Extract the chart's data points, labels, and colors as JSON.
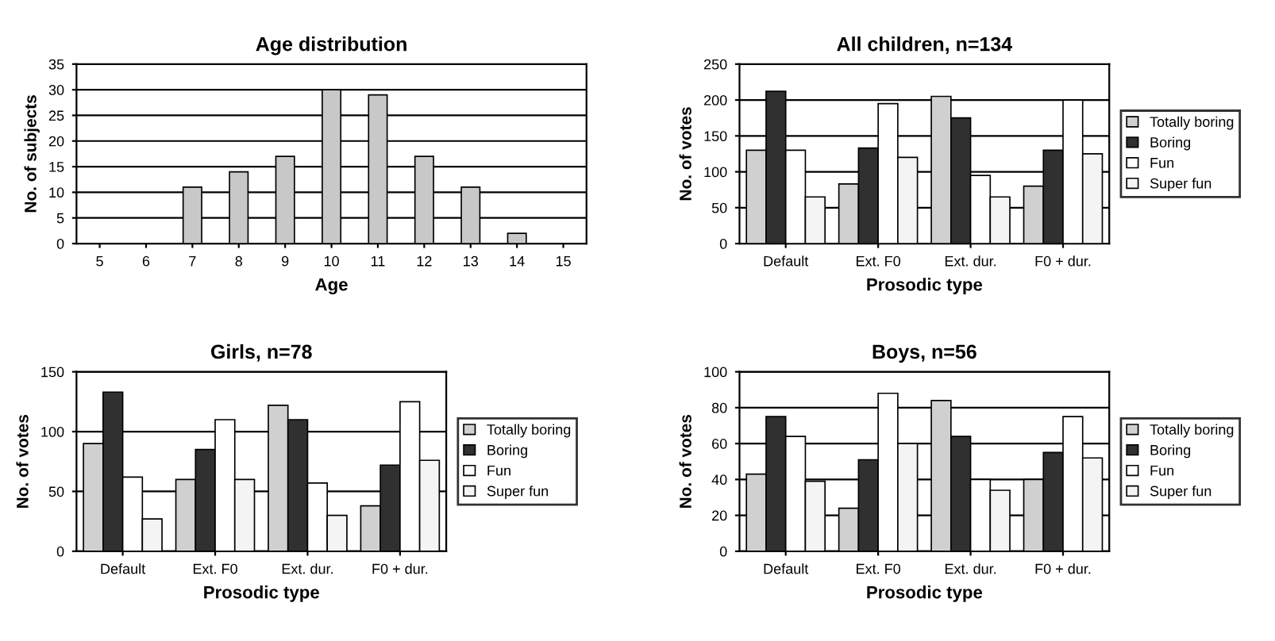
{
  "chart_data": [
    {
      "type": "bar",
      "title": "Age distribution",
      "xlabel": "Age",
      "ylabel": "No. of subjects",
      "categories": [
        "5",
        "6",
        "7",
        "8",
        "9",
        "10",
        "11",
        "12",
        "13",
        "14",
        "15"
      ],
      "series": [
        {
          "color": "#c8c8c8",
          "values": [
            0,
            0,
            11,
            14,
            17,
            30,
            29,
            17,
            11,
            2,
            0
          ]
        }
      ],
      "ylim": [
        0,
        35
      ],
      "yticks": [
        0,
        5,
        10,
        15,
        20,
        25,
        30,
        35
      ],
      "grid": "y",
      "legend": false
    },
    {
      "type": "bar",
      "title": "All children, n=134",
      "xlabel": "Prosodic type",
      "ylabel": "No. of votes",
      "categories": [
        "Default",
        "Ext. F0",
        "Ext. dur.",
        "F0 + dur."
      ],
      "series": [
        {
          "name": "Totally boring",
          "color": "#d0d0d0",
          "values": [
            130,
            83,
            205,
            80
          ]
        },
        {
          "name": "Boring",
          "color": "#303030",
          "values": [
            212,
            133,
            175,
            130
          ]
        },
        {
          "name": "Fun",
          "color": "#ffffff",
          "values": [
            130,
            195,
            95,
            200
          ]
        },
        {
          "name": "Super fun",
          "color": "#f4f4f4",
          "values": [
            65,
            120,
            65,
            125
          ]
        }
      ],
      "ylim": [
        0,
        250
      ],
      "yticks": [
        0,
        50,
        100,
        150,
        200,
        250
      ],
      "grid": "y",
      "legend": "right"
    },
    {
      "type": "bar",
      "title": "Girls, n=78",
      "xlabel": "Prosodic type",
      "ylabel": "No. of votes",
      "categories": [
        "Default",
        "Ext. F0",
        "Ext. dur.",
        "F0 + dur."
      ],
      "series": [
        {
          "name": "Totally boring",
          "color": "#d0d0d0",
          "values": [
            90,
            60,
            122,
            38
          ]
        },
        {
          "name": "Boring",
          "color": "#303030",
          "values": [
            133,
            85,
            110,
            72
          ]
        },
        {
          "name": "Fun",
          "color": "#ffffff",
          "values": [
            62,
            110,
            57,
            125
          ]
        },
        {
          "name": "Super fun",
          "color": "#f4f4f4",
          "values": [
            27,
            60,
            30,
            76
          ]
        }
      ],
      "ylim": [
        0,
        150
      ],
      "yticks": [
        0,
        50,
        100,
        150
      ],
      "grid": "y",
      "legend": "right"
    },
    {
      "type": "bar",
      "title": "Boys, n=56",
      "xlabel": "Prosodic type",
      "ylabel": "No. of votes",
      "categories": [
        "Default",
        "Ext. F0",
        "Ext. dur.",
        "F0 + dur."
      ],
      "series": [
        {
          "name": "Totally boring",
          "color": "#d0d0d0",
          "values": [
            43,
            24,
            84,
            40
          ]
        },
        {
          "name": "Boring",
          "color": "#303030",
          "values": [
            75,
            51,
            64,
            55
          ]
        },
        {
          "name": "Fun",
          "color": "#ffffff",
          "values": [
            64,
            88,
            40,
            75
          ]
        },
        {
          "name": "Super fun",
          "color": "#f4f4f4",
          "values": [
            39,
            60,
            34,
            52
          ]
        }
      ],
      "ylim": [
        0,
        100
      ],
      "yticks": [
        0,
        20,
        40,
        60,
        80,
        100
      ],
      "grid": "y",
      "legend": "right"
    }
  ]
}
